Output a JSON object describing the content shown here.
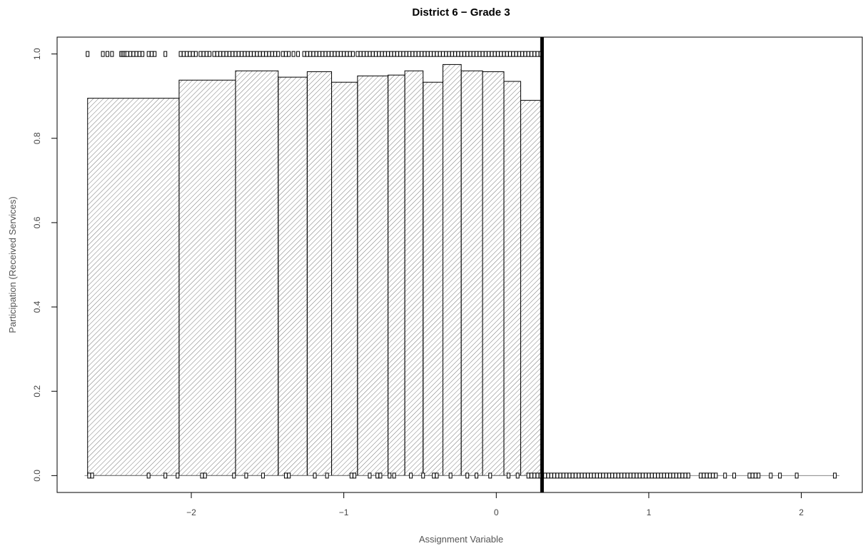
{
  "chart_data": {
    "type": "bar",
    "title": "District 6 − Grade 3",
    "xlabel": "Assignment Variable",
    "ylabel": "Participation (Received Services)",
    "xlim": [
      -2.88,
      2.4
    ],
    "ylim": [
      -0.04,
      1.04
    ],
    "xticks": [
      -2,
      -1,
      0,
      1,
      2
    ],
    "xtick_labels": [
      "−2",
      "−1",
      "0",
      "1",
      "2"
    ],
    "yticks": [
      0.0,
      0.2,
      0.4,
      0.6,
      0.8,
      1.0
    ],
    "ytick_labels": [
      "0.0",
      "0.2",
      "0.4",
      "0.6",
      "0.8",
      "1.0"
    ],
    "cutoff": 0.3,
    "bins": [
      {
        "x0": -2.68,
        "x1": -2.08,
        "value": 0.895
      },
      {
        "x0": -2.08,
        "x1": -1.71,
        "value": 0.938
      },
      {
        "x0": -1.71,
        "x1": -1.43,
        "value": 0.96
      },
      {
        "x0": -1.43,
        "x1": -1.24,
        "value": 0.945
      },
      {
        "x0": -1.24,
        "x1": -1.08,
        "value": 0.958
      },
      {
        "x0": -1.08,
        "x1": -0.91,
        "value": 0.933
      },
      {
        "x0": -0.91,
        "x1": -0.71,
        "value": 0.948
      },
      {
        "x0": -0.71,
        "x1": -0.6,
        "value": 0.95
      },
      {
        "x0": -0.6,
        "x1": -0.48,
        "value": 0.96
      },
      {
        "x0": -0.48,
        "x1": -0.35,
        "value": 0.933
      },
      {
        "x0": -0.35,
        "x1": -0.23,
        "value": 0.975
      },
      {
        "x0": -0.23,
        "x1": -0.09,
        "value": 0.96
      },
      {
        "x0": -0.09,
        "x1": 0.05,
        "value": 0.958
      },
      {
        "x0": 0.05,
        "x1": 0.16,
        "value": 0.935
      },
      {
        "x0": 0.16,
        "x1": 0.3,
        "value": 0.89
      }
    ],
    "points_participation_1": [
      -2.68,
      -2.58,
      -2.55,
      -2.52,
      -2.46,
      -2.45,
      -2.44,
      -2.43,
      -2.42,
      -2.4,
      -2.38,
      -2.36,
      -2.34,
      -2.32,
      -2.28,
      -2.26,
      -2.24,
      -2.17,
      -2.07,
      -2.05,
      -2.03,
      -2.01,
      -1.99,
      -1.97,
      -1.94,
      -1.92,
      -1.9,
      -1.88,
      -1.85,
      -1.83,
      -1.81,
      -1.79,
      -1.77,
      -1.75,
      -1.73,
      -1.71,
      -1.69,
      -1.67,
      -1.65,
      -1.63,
      -1.61,
      -1.59,
      -1.57,
      -1.55,
      -1.53,
      -1.51,
      -1.49,
      -1.47,
      -1.45,
      -1.43,
      -1.4,
      -1.38,
      -1.36,
      -1.33,
      -1.3,
      -1.26,
      -1.24,
      -1.22,
      -1.2,
      -1.18,
      -1.16,
      -1.14,
      -1.12,
      -1.1,
      -1.08,
      -1.06,
      -1.04,
      -1.02,
      -1.0,
      -0.98,
      -0.96,
      -0.94,
      -0.91,
      -0.89,
      -0.87,
      -0.85,
      -0.83,
      -0.81,
      -0.79,
      -0.77,
      -0.75,
      -0.73,
      -0.71,
      -0.69,
      -0.67,
      -0.65,
      -0.63,
      -0.61,
      -0.59,
      -0.57,
      -0.55,
      -0.53,
      -0.51,
      -0.49,
      -0.47,
      -0.45,
      -0.43,
      -0.41,
      -0.39,
      -0.37,
      -0.35,
      -0.33,
      -0.31,
      -0.29,
      -0.27,
      -0.25,
      -0.23,
      -0.21,
      -0.19,
      -0.17,
      -0.15,
      -0.13,
      -0.11,
      -0.09,
      -0.07,
      -0.05,
      -0.03,
      -0.01,
      0.01,
      0.03,
      0.05,
      0.07,
      0.09,
      0.11,
      0.13,
      0.15,
      0.17,
      0.19,
      0.21,
      0.23,
      0.25,
      0.27,
      0.29
    ],
    "points_participation_0": [
      -2.67,
      -2.65,
      -2.28,
      -2.17,
      -2.09,
      -1.93,
      -1.91,
      -1.72,
      -1.64,
      -1.53,
      -1.38,
      -1.36,
      -1.19,
      -1.11,
      -0.95,
      -0.93,
      -0.83,
      -0.78,
      -0.76,
      -0.7,
      -0.67,
      -0.56,
      -0.48,
      -0.41,
      -0.39,
      -0.3,
      -0.19,
      -0.13,
      -0.04,
      0.08,
      0.14,
      0.21,
      0.23,
      0.25,
      0.27,
      0.29,
      0.32,
      0.34,
      0.36,
      0.38,
      0.4,
      0.42,
      0.44,
      0.46,
      0.48,
      0.5,
      0.52,
      0.54,
      0.56,
      0.58,
      0.6,
      0.62,
      0.64,
      0.66,
      0.68,
      0.7,
      0.72,
      0.74,
      0.76,
      0.78,
      0.8,
      0.82,
      0.84,
      0.86,
      0.88,
      0.9,
      0.92,
      0.94,
      0.96,
      0.98,
      1.0,
      1.02,
      1.04,
      1.06,
      1.08,
      1.1,
      1.12,
      1.14,
      1.16,
      1.18,
      1.2,
      1.22,
      1.24,
      1.26,
      1.34,
      1.36,
      1.38,
      1.4,
      1.42,
      1.44,
      1.5,
      1.56,
      1.66,
      1.68,
      1.7,
      1.72,
      1.8,
      1.86,
      1.97,
      2.22
    ],
    "grid": false,
    "legend": "none",
    "colors": {
      "bar_outline": "#000000",
      "hatch": "#555555",
      "cutoff_line": "#000000"
    }
  }
}
